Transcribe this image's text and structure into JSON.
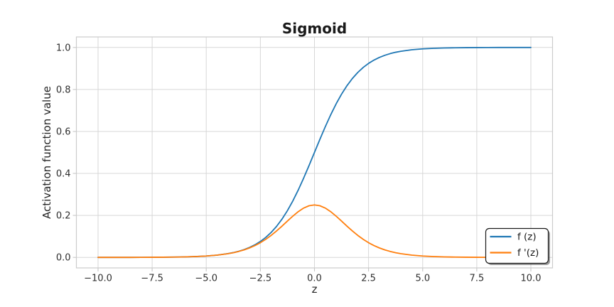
{
  "figure": {
    "background": "#ffffff"
  },
  "chart_data": {
    "type": "line",
    "title": "Sigmoid",
    "xlabel": "z",
    "ylabel": "Activation function value",
    "xlim": [
      -11,
      11
    ],
    "ylim": [
      -0.05,
      1.05
    ],
    "grid": true,
    "legend_position": "lower right",
    "x_ticks": [
      -10,
      -7.5,
      -5,
      -2.5,
      0,
      2.5,
      5,
      7.5,
      10
    ],
    "x_tick_labels": [
      "−10.0",
      "−7.5",
      "−5.0",
      "−2.5",
      "0.0",
      "2.5",
      "5.0",
      "7.5",
      "10.0"
    ],
    "y_ticks": [
      0,
      0.2,
      0.4,
      0.6,
      0.8,
      1.0
    ],
    "y_tick_labels": [
      "0.0",
      "0.2",
      "0.4",
      "0.6",
      "0.8",
      "1.0"
    ],
    "x": [
      -10,
      -9.5,
      -9,
      -8.5,
      -8,
      -7.5,
      -7,
      -6.5,
      -6,
      -5.5,
      -5,
      -4.5,
      -4,
      -3.75,
      -3.5,
      -3.25,
      -3,
      -2.75,
      -2.5,
      -2.25,
      -2,
      -1.75,
      -1.5,
      -1.25,
      -1,
      -0.75,
      -0.5,
      -0.25,
      0,
      0.25,
      0.5,
      0.75,
      1,
      1.25,
      1.5,
      1.75,
      2,
      2.25,
      2.5,
      2.75,
      3,
      3.25,
      3.5,
      3.75,
      4,
      4.5,
      5,
      5.5,
      6,
      6.5,
      7,
      7.5,
      8,
      8.5,
      9,
      9.5,
      10
    ],
    "series": [
      {
        "name": "f (z)",
        "color": "#1f77b4",
        "y": [
          5e-05,
          7e-05,
          0.00012,
          0.0002,
          0.00034,
          0.00055,
          0.00091,
          0.0015,
          0.00247,
          0.00407,
          0.00669,
          0.01099,
          0.01799,
          0.02298,
          0.02931,
          0.03733,
          0.04743,
          0.06009,
          0.07586,
          0.09535,
          0.1192,
          0.14805,
          0.18243,
          0.2227,
          0.26894,
          0.32082,
          0.37754,
          0.43782,
          0.5,
          0.56218,
          0.62246,
          0.67918,
          0.73106,
          0.7773,
          0.81757,
          0.85195,
          0.8808,
          0.90465,
          0.92414,
          0.93991,
          0.95257,
          0.96267,
          0.97069,
          0.97702,
          0.98201,
          0.98901,
          0.99331,
          0.99593,
          0.99753,
          0.9985,
          0.99909,
          0.99945,
          0.99966,
          0.9998,
          0.99988,
          0.99993,
          0.99995
        ]
      },
      {
        "name": "f '(z)",
        "color": "#ff7f0e",
        "y": [
          5e-05,
          7e-05,
          0.00012,
          0.0002,
          0.00033,
          0.00055,
          0.00091,
          0.0015,
          0.00247,
          0.00404,
          0.00665,
          0.01087,
          0.01766,
          0.02245,
          0.02845,
          0.03594,
          0.04518,
          0.05648,
          0.0701,
          0.08626,
          0.10499,
          0.12613,
          0.14915,
          0.1731,
          0.19661,
          0.2179,
          0.235,
          0.24613,
          0.25,
          0.24613,
          0.235,
          0.2179,
          0.19661,
          0.1731,
          0.14915,
          0.12613,
          0.10499,
          0.08626,
          0.0701,
          0.05648,
          0.04518,
          0.03594,
          0.02845,
          0.02245,
          0.01766,
          0.01087,
          0.00665,
          0.00404,
          0.00247,
          0.0015,
          0.00091,
          0.00055,
          0.00033,
          0.0002,
          0.00012,
          7e-05,
          5e-05
        ]
      }
    ],
    "style": {
      "grid_color": "#d7d7d7",
      "spine_color": "#cccccc",
      "tick_color": "#c6c6c6",
      "line_width": 1.8
    }
  }
}
